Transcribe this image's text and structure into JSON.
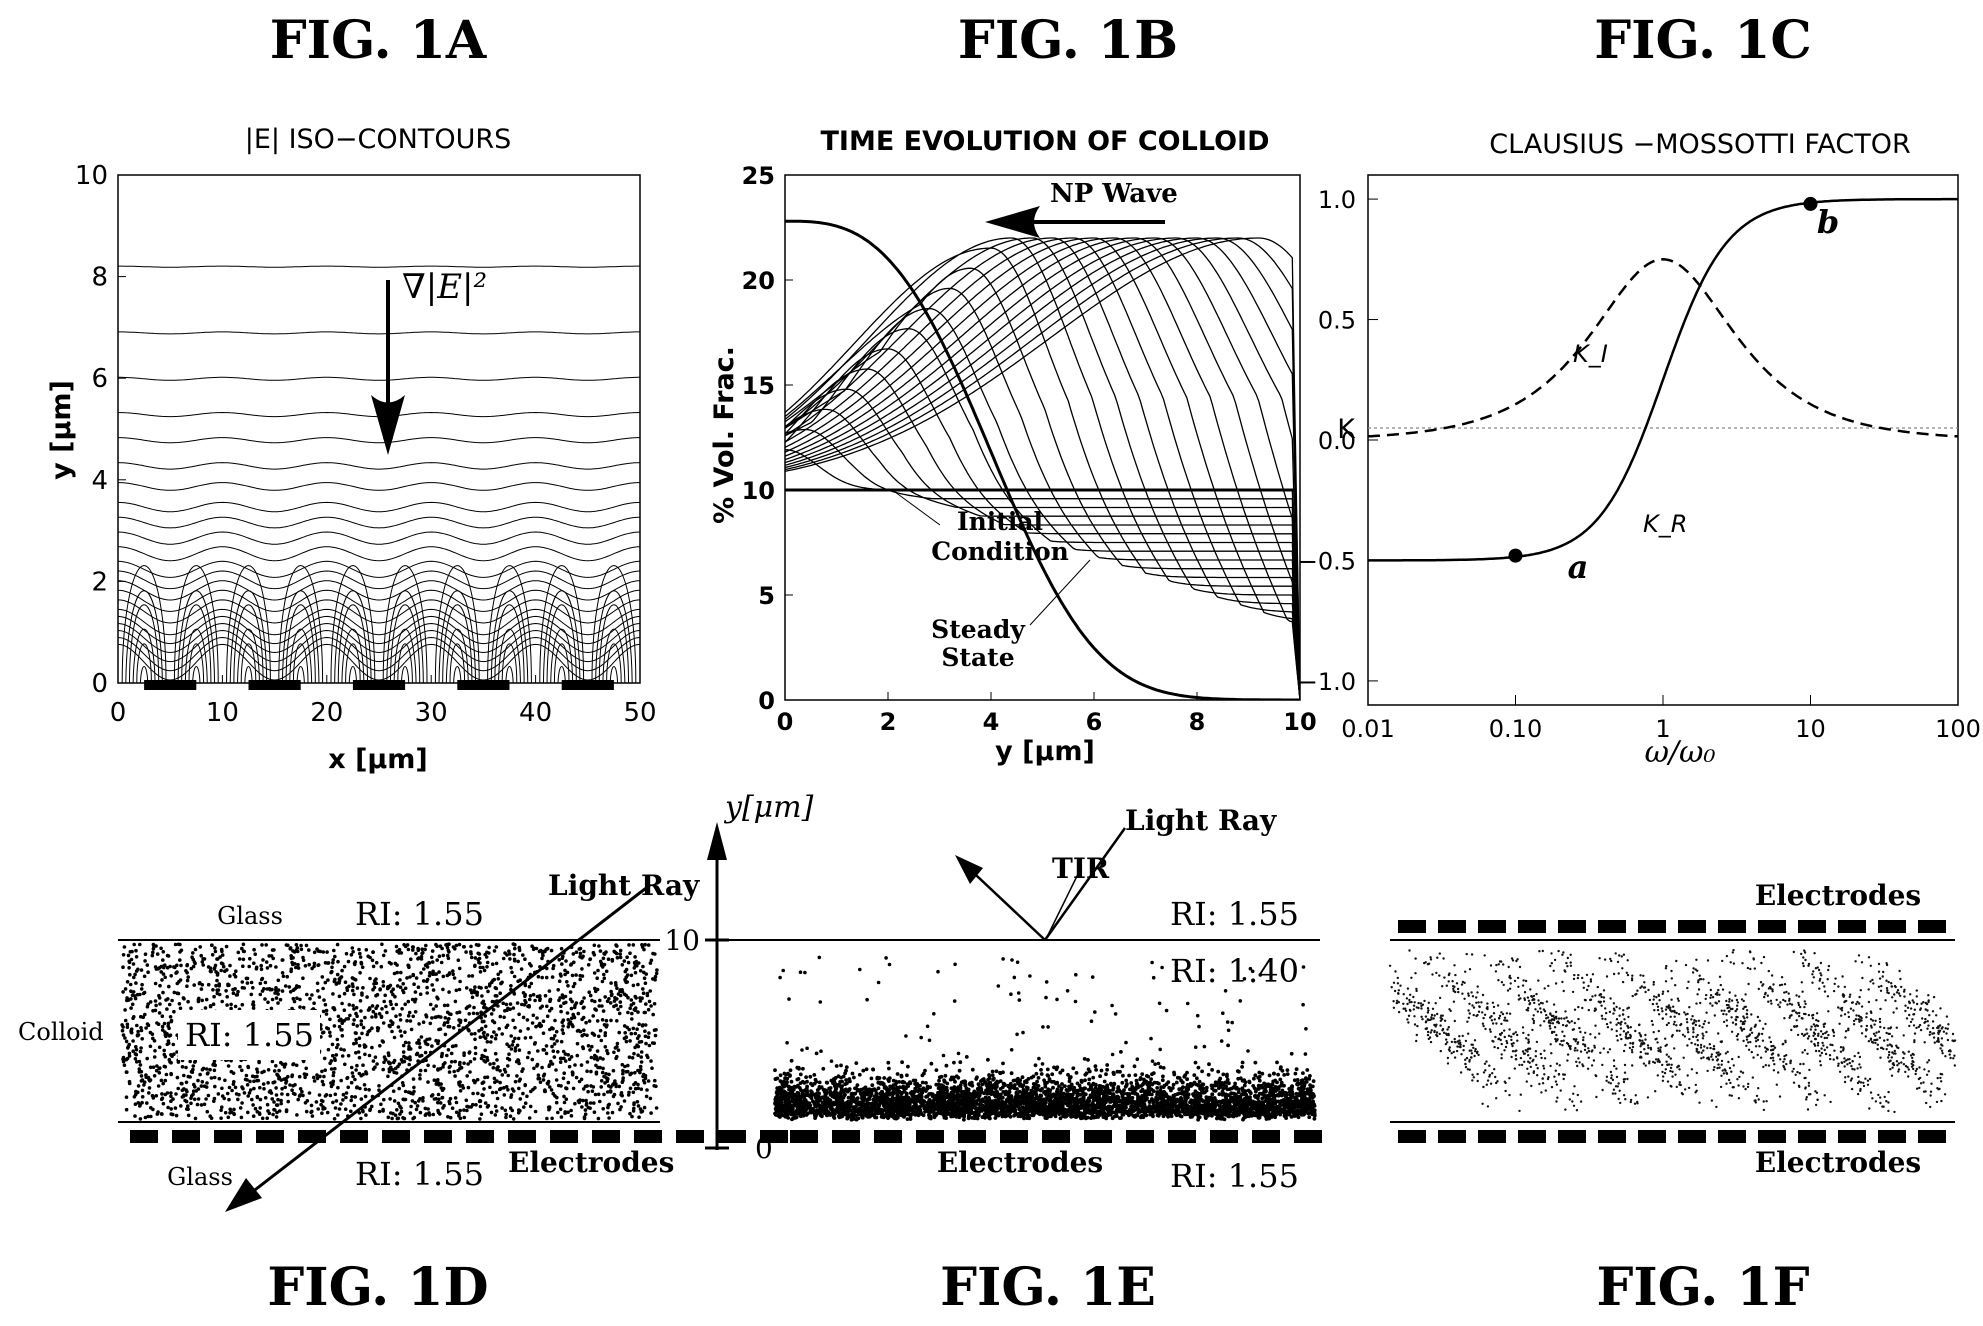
{
  "figure_labels": {
    "a": "FIG. 1A",
    "b": "FIG. 1B",
    "c": "FIG. 1C",
    "d": "FIG. 1D",
    "e": "FIG. 1E",
    "f": "FIG. 1F"
  },
  "panel_a": {
    "title": "|E| ISO−CONTOURS",
    "xlabel": "x  [μm]",
    "ylabel": "y  [μm]",
    "x_ticks": [
      "0",
      "10",
      "20",
      "30",
      "40",
      "50"
    ],
    "y_ticks": [
      "0",
      "2",
      "4",
      "6",
      "8",
      "10"
    ],
    "annotation": "∇|E|²"
  },
  "panel_b": {
    "title": "TIME EVOLUTION OF COLLOID",
    "xlabel": "y  [μm]",
    "ylabel": "% Vol. Frac.",
    "x_ticks": [
      "0",
      "2",
      "4",
      "6",
      "8",
      "10"
    ],
    "y_ticks": [
      "0",
      "5",
      "10",
      "15",
      "20",
      "25"
    ],
    "wave_label": "NP Wave",
    "initial_label": [
      "Initial",
      "Condition"
    ],
    "steady_label": [
      "Steady",
      "State"
    ]
  },
  "panel_c": {
    "title": "CLAUSIUS −MOSSOTTI FACTOR",
    "xlabel": "ω/ω₀",
    "ylabel": "K",
    "x_ticks": [
      "0.01",
      "0.10",
      "1",
      "10",
      "100"
    ],
    "y_ticks": [
      "1.0",
      "0.5",
      "0.0",
      "−0.5",
      "−1.0"
    ],
    "curve_real": "K_R",
    "curve_imag": "K_I",
    "point_a": "a",
    "point_b": "b"
  },
  "panel_d": {
    "glass_top": "Glass",
    "glass_bottom": "Glass",
    "colloid": "Colloid",
    "ri_top": "RI: 1.55",
    "ri_mid": "RI: 1.55",
    "ri_bottom": "RI: 1.55",
    "light_ray": "Light Ray",
    "electrodes": "Electrodes"
  },
  "panel_e": {
    "axis_label": "y[μm]",
    "tick_top": "10",
    "tick_bottom": "0",
    "light_ray": "Light Ray",
    "tir": "TIR",
    "ri_top": "RI: 1.55",
    "ri_mid": "RI: 1.40",
    "ri_bottom": "RI: 1.55",
    "electrodes": "Electrodes"
  },
  "panel_f": {
    "electrodes_top": "Electrodes",
    "electrodes_bottom": "Electrodes"
  },
  "chart_data": [
    {
      "type": "line",
      "title": "|E| ISO−CONTOURS",
      "xlabel": "x  [μm]",
      "ylabel": "y  [μm]",
      "xlim": [
        0,
        50
      ],
      "ylim": [
        0,
        10
      ],
      "electrode_segments": [
        [
          2.5,
          7.5
        ],
        [
          12.5,
          17.5
        ],
        [
          22.5,
          27.5
        ],
        [
          32.5,
          37.5
        ],
        [
          42.5,
          47.5
        ]
      ],
      "contour_levels_y": [
        8.2,
        6.9,
        6.0,
        5.3,
        4.8,
        4.3,
        3.9,
        3.5,
        3.2,
        2.9,
        2.6,
        2.3,
        2.1,
        1.9,
        1.7,
        1.5,
        1.3,
        1.15,
        1.0,
        0.85,
        0.7,
        0.55
      ]
    },
    {
      "type": "line",
      "title": "TIME EVOLUTION OF COLLOID",
      "xlabel": "y  [μm]",
      "ylabel": "% Vol. Frac.",
      "xlim": [
        0,
        10
      ],
      "ylim": [
        0,
        25
      ],
      "initial_condition": 10,
      "steady_state_at_0": 22.8,
      "peak_positions": [
        0.0,
        0.4,
        0.8,
        1.2,
        1.6,
        2.0,
        2.4,
        2.8,
        3.2,
        3.6,
        4.0,
        4.4,
        4.8,
        5.2,
        5.6,
        6.0,
        6.4,
        6.8,
        7.2,
        7.6,
        8.0,
        8.4,
        8.8,
        9.2
      ]
    },
    {
      "type": "line",
      "title": "CLAUSIUS −MOSSOTTI FACTOR",
      "xlabel": "ω/ω₀",
      "ylabel": "K",
      "xscale": "log",
      "xlim": [
        0.01,
        100
      ],
      "ylim": [
        -1.0,
        1.0
      ],
      "series": [
        {
          "name": "K_R",
          "style": "solid",
          "low": -0.5,
          "high": 1.0
        },
        {
          "name": "K_I",
          "style": "dashed",
          "peak": 0.75,
          "peak_at": 1
        }
      ],
      "points": [
        {
          "label": "a",
          "x": 0.1,
          "y": -0.48
        },
        {
          "label": "b",
          "x": 10,
          "y": 0.98
        }
      ]
    }
  ]
}
